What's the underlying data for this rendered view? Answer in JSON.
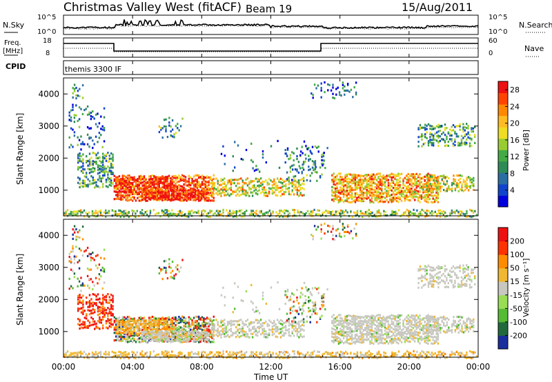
{
  "header": {
    "station": "Christmas Valley West (fitACF)",
    "beam": "Beam 19",
    "date": "15/Aug/2011"
  },
  "noise_panel": {
    "left_label": "N.Sky",
    "right_label": "N.Search",
    "left_ticks": [
      "10^5",
      "10^0"
    ],
    "right_ticks": [
      "10^5",
      "10^0"
    ]
  },
  "freq_panel": {
    "left_label_line1": "Freq.",
    "left_label_line2": "[MHz]",
    "left_ticks": [
      "18",
      "8"
    ],
    "right_label": "Nave",
    "right_ticks": [
      "60",
      "0"
    ]
  },
  "cpid_panel": {
    "label": "CPID",
    "text": "themis 3300 IF"
  },
  "x_axis": {
    "label": "Time UT",
    "ticks": [
      "00:00",
      "04:00",
      "08:00",
      "12:00",
      "16:00",
      "20:00",
      "00:00"
    ]
  },
  "chart_data": [
    {
      "type": "heatmap",
      "name": "power",
      "ylabel": "Slant Range [km]",
      "yticks": [
        "1000",
        "2000",
        "3000",
        "4000"
      ],
      "ylim": [
        200,
        4500
      ],
      "xlim_hours": [
        0,
        24
      ],
      "colorbar": {
        "label": "Power [dB]",
        "ticks": [
          "4",
          "8",
          "12",
          "16",
          "20",
          "24",
          "28"
        ],
        "range": [
          0,
          30
        ],
        "colors": [
          "#0000dd",
          "#1144cc",
          "#2c6ea4",
          "#2e8b57",
          "#44aa44",
          "#99cc33",
          "#eedd22",
          "#ffbb22",
          "#ff8800",
          "#ff4400",
          "#ee1111"
        ]
      }
    },
    {
      "type": "heatmap",
      "name": "velocity",
      "ylabel": "Slant Range [km]",
      "yticks": [
        "1000",
        "2000",
        "3000",
        "4000"
      ],
      "ylim": [
        200,
        4500
      ],
      "xlim_hours": [
        0,
        24
      ],
      "colorbar": {
        "label": "Velocity [m s⁻¹]",
        "ticks": [
          "200",
          "100",
          "50",
          "15",
          "-15",
          "-50",
          "-100",
          "-200"
        ],
        "colors": [
          "#1a2e9e",
          "#226a3c",
          "#55bb33",
          "#99dd55",
          "#c8c8c0",
          "#f0b830",
          "#ff8c00",
          "#ff3300",
          "#ee1111"
        ]
      }
    }
  ]
}
